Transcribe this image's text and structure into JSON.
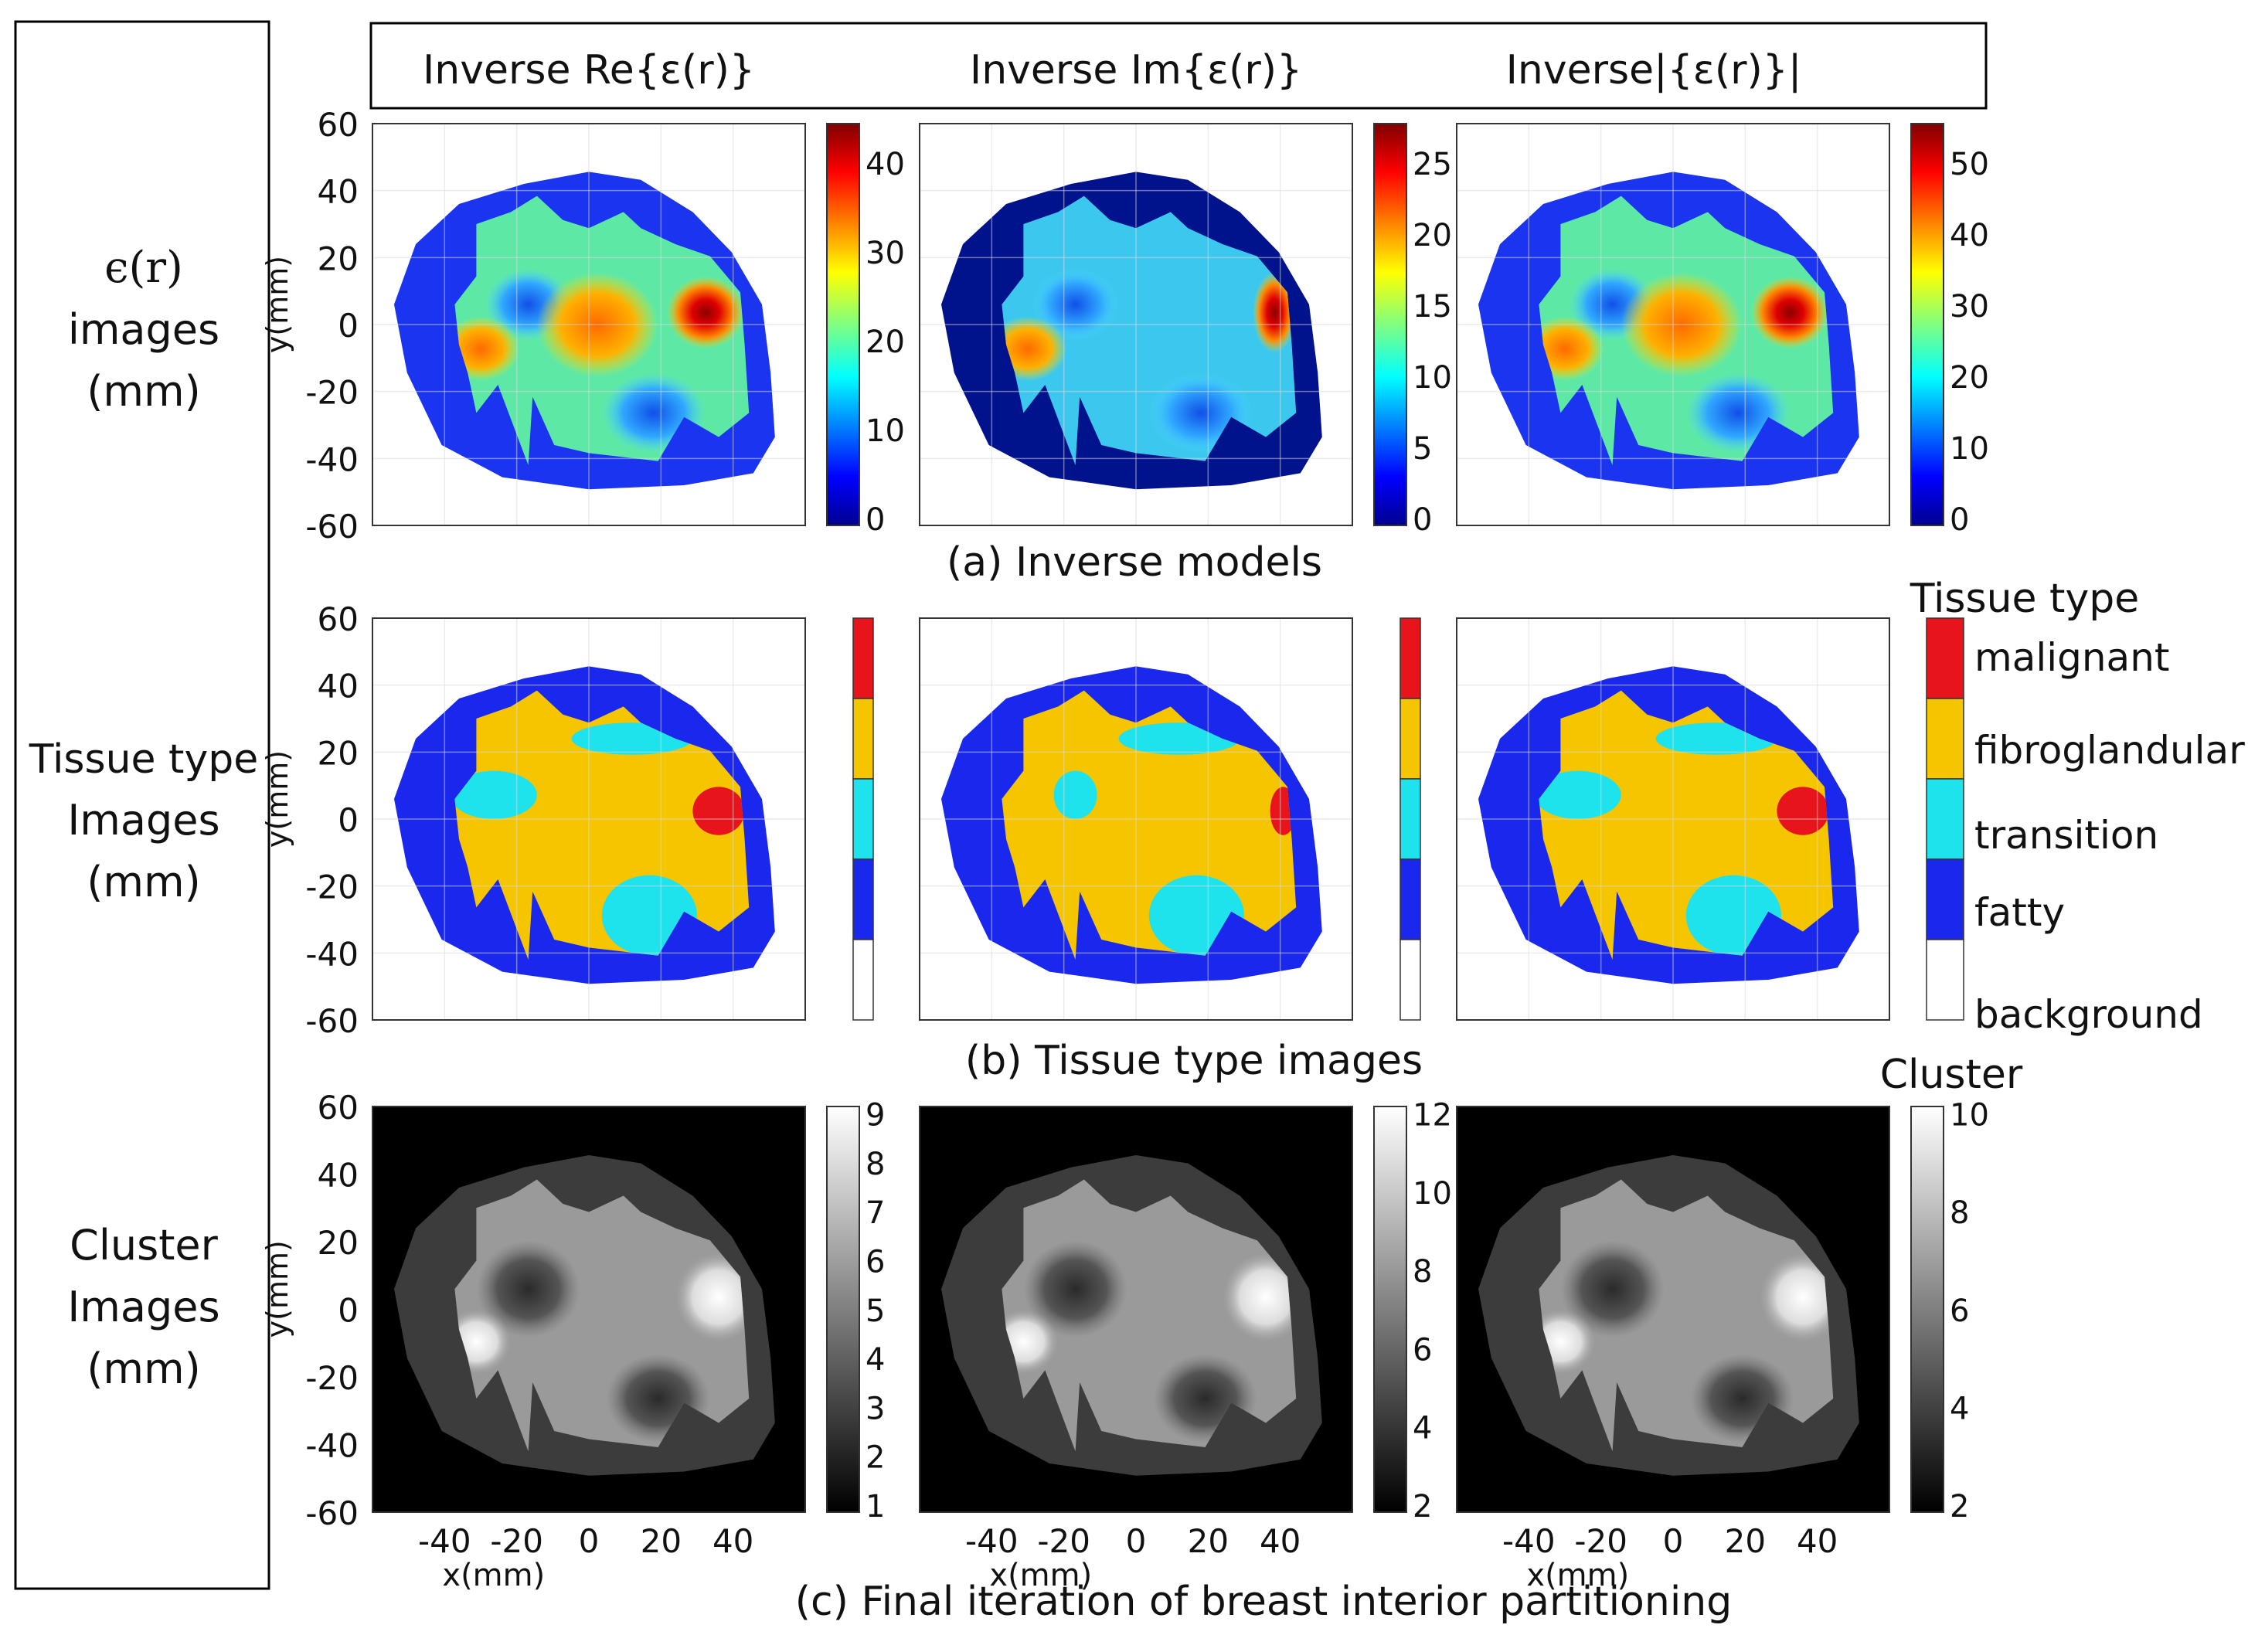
{
  "header": {
    "col_titles": [
      "Inverse Re{ε(r)}",
      "Inverse Im{ε(r)}",
      "Inverse|{ε(r)}|"
    ]
  },
  "row_labels": [
    [
      "ϵ(r)",
      "images",
      "(mm)"
    ],
    [
      "Tissue type",
      "Images",
      "(mm)"
    ],
    [
      "Cluster",
      "Images",
      "(mm)"
    ]
  ],
  "captions": {
    "a": "(a) Inverse models",
    "b": "(b) Tissue type images",
    "c": "(c) Final iteration of breast interior partitioning"
  },
  "axes": {
    "ylabel": "y(mm)",
    "xlabel": "x(mm)",
    "y_ticks": [
      "60",
      "40",
      "20",
      "0",
      "-20",
      "-40",
      "-60"
    ],
    "x_ticks": [
      "-40",
      "-20",
      "0",
      "20",
      "40"
    ]
  },
  "legend": {
    "tissue_title": "Tissue type",
    "tissue_labels": [
      "malignant",
      "fibroglandular",
      "transition",
      "fatty",
      "background"
    ],
    "cluster_title": "Cluster"
  },
  "colors": {
    "malignant": "#e8141b",
    "fibroglandular": "#f5c500",
    "transition": "#1ee3ec",
    "fatty": "#1a28ee",
    "background": "#ffffff"
  },
  "colorbars": {
    "row1": [
      [
        "40",
        "30",
        "20",
        "10",
        "0"
      ],
      [
        "25",
        "20",
        "15",
        "10",
        "5",
        "0"
      ],
      [
        "50",
        "40",
        "30",
        "20",
        "10",
        "0"
      ]
    ],
    "row3": [
      [
        "9",
        "8",
        "7",
        "6",
        "5",
        "4",
        "3",
        "2",
        "1"
      ],
      [
        "12",
        "10",
        "8",
        "6",
        "4",
        "2"
      ],
      [
        "10",
        "8",
        "6",
        "4",
        "2"
      ]
    ]
  }
}
